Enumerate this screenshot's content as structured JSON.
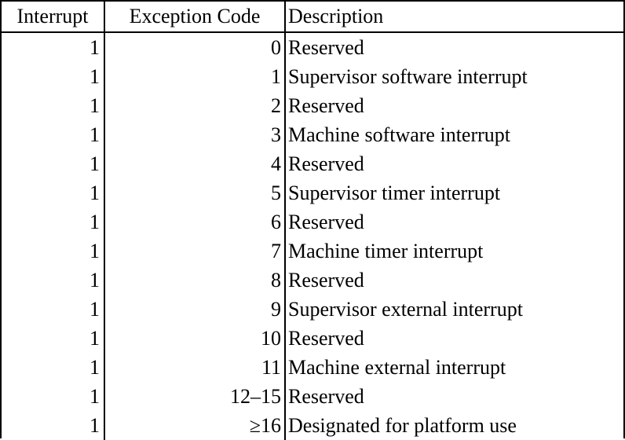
{
  "table": {
    "headers": [
      "Interrupt",
      "Exception Code",
      "Description"
    ],
    "rows": [
      [
        "1",
        "0",
        "Reserved"
      ],
      [
        "1",
        "1",
        "Supervisor software interrupt"
      ],
      [
        "1",
        "2",
        "Reserved"
      ],
      [
        "1",
        "3",
        "Machine software interrupt"
      ],
      [
        "1",
        "4",
        "Reserved"
      ],
      [
        "1",
        "5",
        "Supervisor timer interrupt"
      ],
      [
        "1",
        "6",
        "Reserved"
      ],
      [
        "1",
        "7",
        "Machine timer interrupt"
      ],
      [
        "1",
        "8",
        "Reserved"
      ],
      [
        "1",
        "9",
        "Supervisor external interrupt"
      ],
      [
        "1",
        "10",
        "Reserved"
      ],
      [
        "1",
        "11",
        "Machine external interrupt"
      ],
      [
        "1",
        "12–15",
        "Reserved"
      ],
      [
        "1",
        "≥16",
        "Designated for platform use"
      ]
    ]
  }
}
